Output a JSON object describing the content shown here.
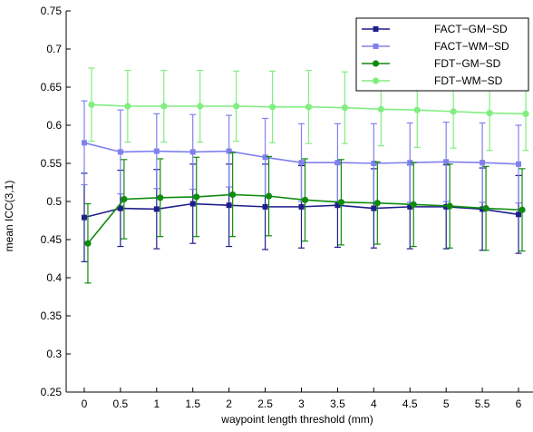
{
  "chart_data": {
    "type": "line",
    "title": "",
    "xlabel": "waypoint length threshold (mm)",
    "ylabel": "mean ICC(3,1)",
    "xlim": [
      -0.25,
      6.2
    ],
    "ylim": [
      0.25,
      0.75
    ],
    "xticks": [
      0,
      0.5,
      1,
      1.5,
      2,
      2.5,
      3,
      3.5,
      4,
      4.5,
      5,
      5.5,
      6
    ],
    "xtick_labels": [
      "0",
      "0.5",
      "1",
      "1.5",
      "2",
      "2.5",
      "3",
      "3.5",
      "4",
      "4.5",
      "5",
      "5.5",
      "6"
    ],
    "yticks": [
      0.25,
      0.3,
      0.35,
      0.4,
      0.45,
      0.5,
      0.55,
      0.6,
      0.65,
      0.7,
      0.75
    ],
    "ytick_labels": [
      "0.25",
      "0.3",
      "0.35",
      "0.4",
      "0.45",
      "0.5",
      "0.55",
      "0.6",
      "0.65",
      "0.7",
      "0.75"
    ],
    "grid": false,
    "legend_position": "top-right",
    "series": [
      {
        "name": "FACT−GM−SD",
        "color": "#1f1f8c",
        "marker": "square",
        "x": [
          0,
          0.5,
          1,
          1.5,
          2,
          2.5,
          3,
          3.5,
          4,
          4.5,
          5,
          5.5,
          6
        ],
        "values": [
          0.479,
          0.491,
          0.49,
          0.497,
          0.495,
          0.493,
          0.493,
          0.495,
          0.491,
          0.493,
          0.493,
          0.49,
          0.483
        ],
        "error": [
          0.058,
          0.05,
          0.052,
          0.052,
          0.054,
          0.056,
          0.054,
          0.055,
          0.052,
          0.055,
          0.055,
          0.054,
          0.051
        ]
      },
      {
        "name": "FACT−WM−SD",
        "color": "#8080ee",
        "marker": "square",
        "x": [
          0,
          0.5,
          1,
          1.5,
          2,
          2.5,
          3,
          3.5,
          4,
          4.5,
          5,
          5.5,
          6
        ],
        "values": [
          0.577,
          0.565,
          0.566,
          0.565,
          0.566,
          0.558,
          0.551,
          0.551,
          0.55,
          0.551,
          0.552,
          0.551,
          0.549
        ],
        "error": [
          0.055,
          0.055,
          0.049,
          0.049,
          0.047,
          0.051,
          0.051,
          0.051,
          0.052,
          0.052,
          0.052,
          0.052,
          0.051
        ]
      },
      {
        "name": "FDT−GM−SD",
        "color": "#0f8c0f",
        "marker": "circle",
        "x": [
          0.05,
          0.55,
          1.05,
          1.55,
          2.05,
          2.55,
          3.05,
          3.55,
          4.05,
          4.55,
          5.05,
          5.55,
          6.05
        ],
        "values": [
          0.445,
          0.503,
          0.505,
          0.506,
          0.509,
          0.507,
          0.502,
          0.499,
          0.498,
          0.496,
          0.494,
          0.491,
          0.489
        ],
        "error": [
          0.052,
          0.052,
          0.051,
          0.052,
          0.055,
          0.052,
          0.054,
          0.056,
          0.054,
          0.055,
          0.055,
          0.055,
          0.054
        ]
      },
      {
        "name": "FDT−WM−SD",
        "color": "#80ee80",
        "marker": "circle",
        "x": [
          0.1,
          0.6,
          1.1,
          1.6,
          2.1,
          2.6,
          3.1,
          3.6,
          4.1,
          4.6,
          5.1,
          5.6,
          6.1
        ],
        "values": [
          0.627,
          0.625,
          0.625,
          0.625,
          0.625,
          0.624,
          0.624,
          0.623,
          0.621,
          0.62,
          0.618,
          0.616,
          0.615
        ],
        "error": [
          0.048,
          0.047,
          0.047,
          0.047,
          0.046,
          0.047,
          0.048,
          0.047,
          0.048,
          0.049,
          0.048,
          0.049,
          0.048
        ]
      }
    ]
  }
}
